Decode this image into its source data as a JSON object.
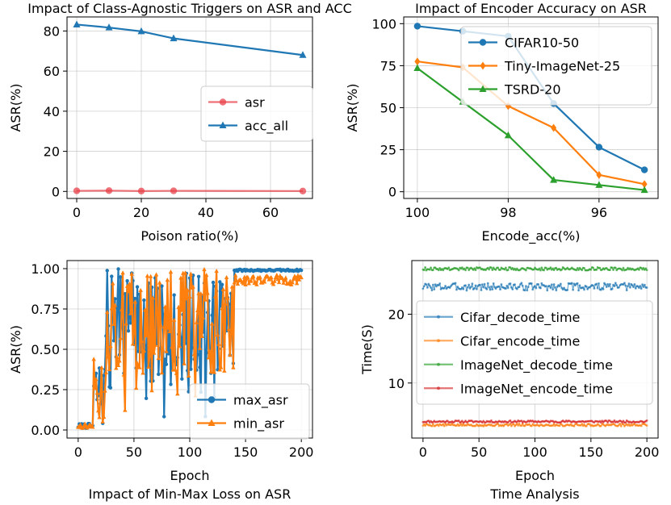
{
  "chart_data": [
    {
      "id": "p1",
      "type": "line",
      "title": "Impact of Class-Agnostic Triggers on ASR and ACC",
      "xlabel": "Poison ratio(%)",
      "ylabel": "ASR(%)",
      "xlim": [
        -3,
        73
      ],
      "ylim": [
        -3.5,
        87
      ],
      "xticks": [
        0,
        20,
        40,
        60
      ],
      "yticks": [
        0,
        20,
        40,
        60,
        80
      ],
      "x_inverted": false,
      "grid": true,
      "legend_position": "center-right",
      "series": [
        {
          "name": "asr",
          "color": "#e8424a",
          "marker": "circle",
          "alpha": 0.75,
          "x": [
            0,
            10,
            20,
            30,
            70
          ],
          "y": [
            0.3,
            0.4,
            0.2,
            0.3,
            0.2
          ]
        },
        {
          "name": "acc_all",
          "color": "#1f77b4",
          "marker": "triangle",
          "x": [
            0,
            10,
            20,
            30,
            70
          ],
          "y": [
            83.2,
            81.7,
            79.8,
            76.3,
            68.0
          ]
        }
      ]
    },
    {
      "id": "p2",
      "type": "line",
      "title": "Impact of Encoder Accuracy on ASR",
      "xlabel": "Encode_acc(%)",
      "ylabel": "ASR(%)",
      "xlim": [
        100.3,
        94.7
      ],
      "ylim": [
        -4,
        104
      ],
      "xticks": [
        100,
        98,
        96
      ],
      "yticks": [
        0,
        25,
        50,
        75,
        100
      ],
      "x_inverted": true,
      "grid": true,
      "legend_position": "upper-right",
      "series": [
        {
          "name": "CIFAR10-50",
          "color": "#1f77b4",
          "marker": "circle",
          "x": [
            100,
            99,
            98,
            97,
            96,
            95
          ],
          "y": [
            98.5,
            95.5,
            92.5,
            52.5,
            26.5,
            13.0
          ]
        },
        {
          "name": "Tiny-ImageNet-25",
          "color": "#ff7f0e",
          "marker": "diamond",
          "x": [
            100,
            99,
            98,
            97,
            96,
            95
          ],
          "y": [
            77.5,
            74.0,
            51.0,
            38.0,
            10.0,
            4.5
          ]
        },
        {
          "name": "TSRD-20",
          "color": "#2ca02c",
          "marker": "triangle",
          "x": [
            100,
            99,
            98,
            97,
            96,
            95
          ],
          "y": [
            73.5,
            53.5,
            33.5,
            7.0,
            4.0,
            1.0
          ]
        }
      ]
    },
    {
      "id": "p3",
      "type": "line",
      "title": "Impact of Min-Max Loss on ASR",
      "xlabel": "Epoch",
      "ylabel": "ASR(%)",
      "xlim": [
        -10,
        210
      ],
      "ylim": [
        -0.05,
        1.05
      ],
      "xticks": [
        0,
        50,
        100,
        150,
        200
      ],
      "yticks": [
        0.0,
        0.25,
        0.5,
        0.75,
        1.0
      ],
      "ytick_labels": [
        "0.00",
        "0.25",
        "0.50",
        "0.75",
        "1.00"
      ],
      "x_inverted": false,
      "grid": true,
      "legend_position": "lower-right",
      "series": [
        {
          "name": "max_asr",
          "color": "#1f77b4",
          "marker": "circle",
          "generator": "minmax",
          "seed": 7,
          "final_mean": 0.99,
          "final_band": 0.006
        },
        {
          "name": "min_asr",
          "color": "#ff7f0e",
          "marker": "triangle",
          "generator": "minmax",
          "seed": 13,
          "final_mean": 0.93,
          "final_band": 0.03
        }
      ]
    },
    {
      "id": "p4",
      "type": "line",
      "title": "Time Analysis",
      "xlabel": "Epoch",
      "ylabel": "Time(S)",
      "xlim": [
        -10,
        210
      ],
      "ylim": [
        2.0,
        27.8
      ],
      "xticks": [
        0,
        50,
        100,
        150,
        200
      ],
      "yticks": [
        10,
        20
      ],
      "x_inverted": false,
      "grid": true,
      "legend_position": "center",
      "series": [
        {
          "name": "Cifar_decode_time",
          "color": "#1f77b4",
          "marker": "dot",
          "alpha": 0.65,
          "generator": "noise",
          "seed": 3,
          "mean": 24.0,
          "noise": 0.55
        },
        {
          "name": "Cifar_encode_time",
          "color": "#ff7f0e",
          "marker": "dot",
          "alpha": 0.65,
          "generator": "noise",
          "seed": 5,
          "mean": 3.9,
          "noise": 0.18
        },
        {
          "name": "ImageNet_decode_time",
          "color": "#2ca02c",
          "marker": "dot",
          "alpha": 0.65,
          "generator": "noise",
          "seed": 9,
          "mean": 26.6,
          "noise": 0.22
        },
        {
          "name": "ImageNet_encode_time",
          "color": "#d62728",
          "marker": "dot",
          "alpha": 0.65,
          "generator": "noise",
          "seed": 11,
          "mean": 4.4,
          "noise": 0.15
        }
      ]
    }
  ]
}
